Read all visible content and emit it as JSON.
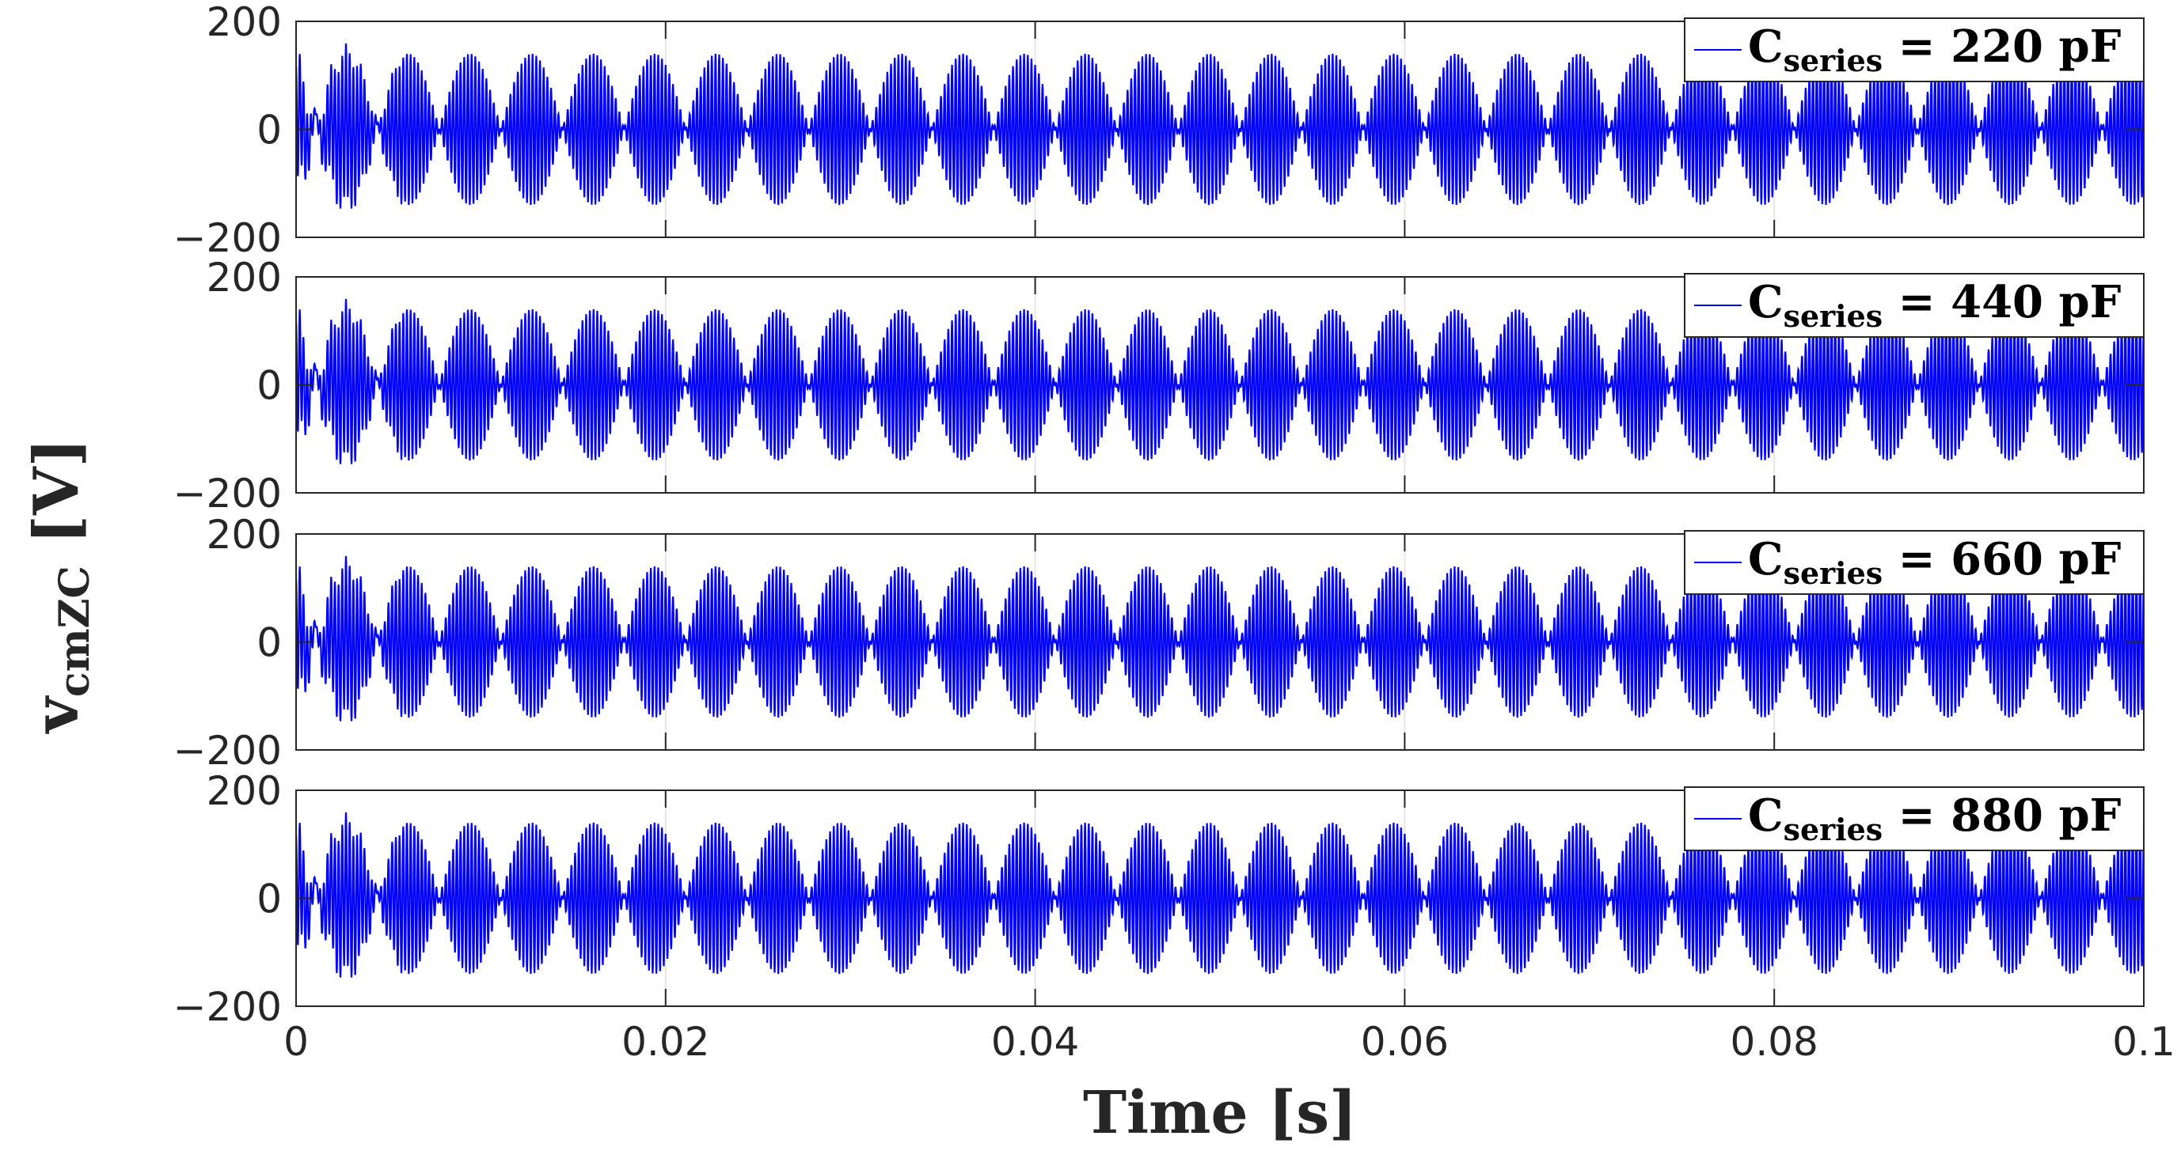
{
  "chart_data": {
    "type": "line",
    "layout": "stacked-subplots",
    "xlabel": "Time [s]",
    "ylabel": {
      "main": "v",
      "sub": "cmZC",
      "unit": "[V]"
    },
    "xlim": [
      0,
      0.1
    ],
    "ylim": [
      -200,
      200
    ],
    "xticks": [
      0,
      0.02,
      0.04,
      0.06,
      0.08,
      0.1
    ],
    "xtick_labels": [
      "0",
      "0.02",
      "0.04",
      "0.06",
      "0.08",
      "0.1"
    ],
    "yticks": [
      200,
      0,
      -200
    ],
    "ytick_labels": [
      "200",
      "0",
      "−200"
    ],
    "grid": true,
    "line_color": "#0000ff",
    "legend_location": "top-right",
    "waveform": {
      "envelope_amplitude": 140,
      "envelope_frequency_hz": 150,
      "carrier_frequency_hz": 5000,
      "initial_transient_end_s": 0.006
    },
    "subplots": [
      {
        "series": [
          {
            "name": "C",
            "name_sub": "series",
            "name_rest": " = 220 pF"
          }
        ]
      },
      {
        "series": [
          {
            "name": "C",
            "name_sub": "series",
            "name_rest": " = 440 pF"
          }
        ]
      },
      {
        "series": [
          {
            "name": "C",
            "name_sub": "series",
            "name_rest": " = 660 pF"
          }
        ]
      },
      {
        "series": [
          {
            "name": "C",
            "name_sub": "series",
            "name_rest": " = 880 pF"
          }
        ]
      }
    ]
  }
}
